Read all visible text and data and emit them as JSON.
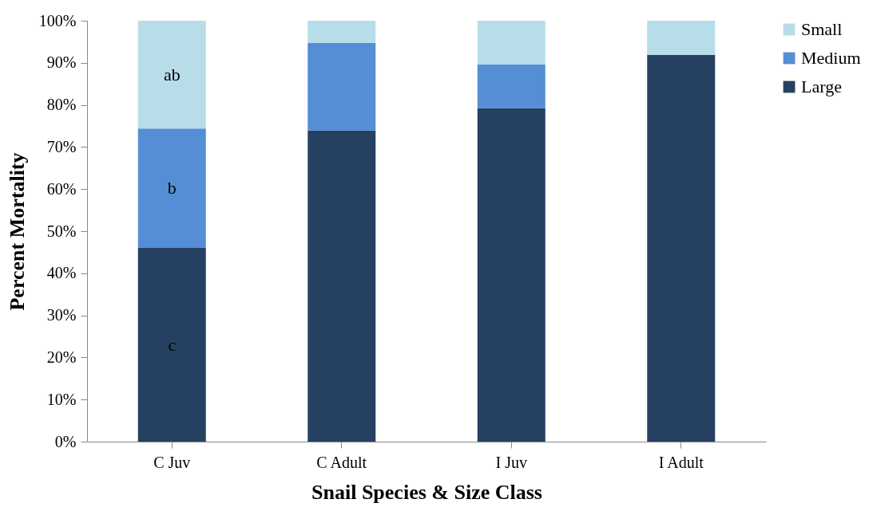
{
  "chart_data": {
    "type": "bar",
    "stacked": true,
    "xlabel": "Snail Species & Size Class",
    "ylabel": "Percent Mortality",
    "categories": [
      "C Juv",
      "C Adult",
      "I Juv",
      "I Adult"
    ],
    "series": [
      {
        "name": "Large",
        "color": "#264061",
        "values": [
          46.0,
          73.9,
          79.2,
          91.9
        ]
      },
      {
        "name": "Medium",
        "color": "#558ed5",
        "values": [
          28.4,
          20.8,
          10.4,
          0
        ]
      },
      {
        "name": "Small",
        "color": "#b7dde8",
        "values": [
          25.6,
          5.3,
          10.4,
          8.1
        ]
      }
    ],
    "ylim": [
      0,
      100
    ],
    "yticks": [
      {
        "value": 0,
        "label": "0%"
      },
      {
        "value": 10,
        "label": "10%"
      },
      {
        "value": 20,
        "label": "20%"
      },
      {
        "value": 30,
        "label": "30%"
      },
      {
        "value": 40,
        "label": "40%"
      },
      {
        "value": 50,
        "label": "50%"
      },
      {
        "value": 60,
        "label": "60%"
      },
      {
        "value": 70,
        "label": "70%"
      },
      {
        "value": 80,
        "label": "80%"
      },
      {
        "value": 90,
        "label": "90%"
      },
      {
        "value": 100,
        "label": "100%"
      }
    ],
    "annotations": [
      "ab",
      "b",
      "c"
    ],
    "grid": false,
    "legend": "right"
  }
}
